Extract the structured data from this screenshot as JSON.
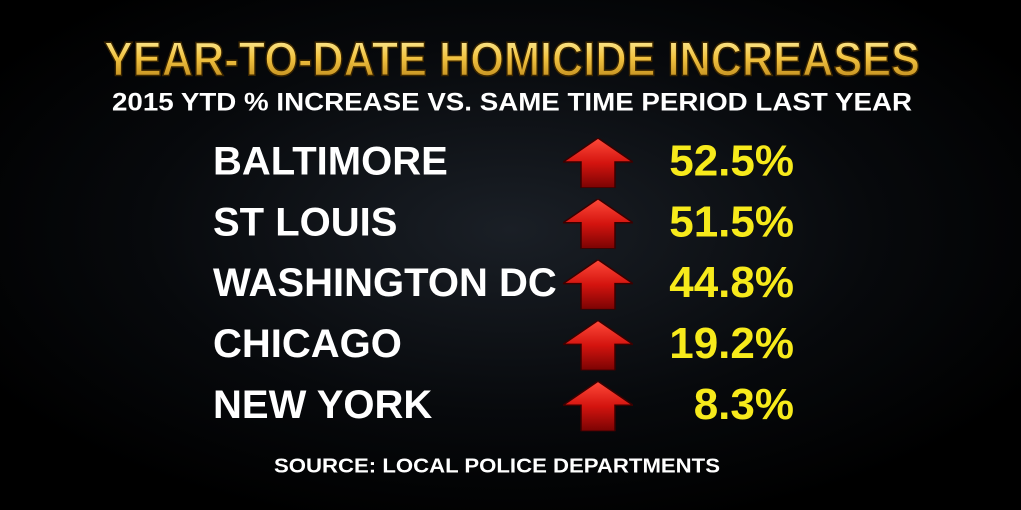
{
  "header": {
    "title": "YEAR-TO-DATE HOMICIDE INCREASES",
    "subtitle": "2015 YTD % INCREASE VS. SAME TIME PERIOD LAST YEAR"
  },
  "table": {
    "rows": [
      [
        "BALTIMORE",
        "52.5%"
      ],
      [
        "ST LOUIS",
        "51.5%"
      ],
      [
        "WASHINGTON DC",
        "44.8%"
      ],
      [
        "CHICAGO",
        "19.2%"
      ],
      [
        "NEW YORK",
        "8.3%"
      ]
    ]
  },
  "footer": {
    "source": "SOURCE: LOCAL POLICE DEPARTMENTS"
  }
}
